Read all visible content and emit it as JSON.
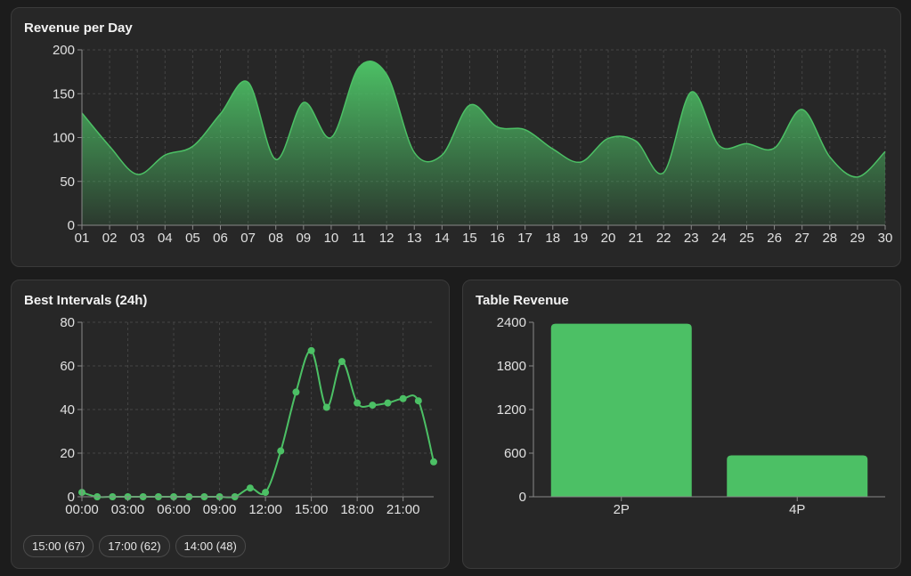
{
  "cards": {
    "revenue_title": "Revenue per Day",
    "intervals_title": "Best Intervals (24h)",
    "table_title": "Table Revenue"
  },
  "best_interval_pills": [
    "15:00 (67)",
    "17:00 (62)",
    "14:00 (48)"
  ],
  "colors": {
    "accent": "#4cc065",
    "background": "#1c1c1c",
    "card": "#272727"
  },
  "chart_data": [
    {
      "type": "area",
      "title": "Revenue per Day",
      "categories": [
        "01",
        "02",
        "03",
        "04",
        "05",
        "06",
        "07",
        "08",
        "09",
        "10",
        "11",
        "12",
        "13",
        "14",
        "15",
        "16",
        "17",
        "18",
        "19",
        "20",
        "21",
        "22",
        "23",
        "24",
        "25",
        "26",
        "27",
        "28",
        "29",
        "30"
      ],
      "series": [
        {
          "values": [
            128,
            90,
            58,
            80,
            90,
            127,
            163,
            75,
            140,
            100,
            180,
            172,
            83,
            80,
            137,
            112,
            109,
            87,
            72,
            99,
            96,
            60,
            152,
            91,
            93,
            88,
            132,
            78,
            55,
            84
          ]
        }
      ],
      "ylim": [
        0,
        200
      ],
      "yticks": [
        0,
        50,
        100,
        150,
        200
      ],
      "grid": true
    },
    {
      "type": "line",
      "title": "Best Intervals (24h)",
      "x": [
        "00:00",
        "01:00",
        "02:00",
        "03:00",
        "04:00",
        "05:00",
        "06:00",
        "07:00",
        "08:00",
        "09:00",
        "10:00",
        "11:00",
        "12:00",
        "13:00",
        "14:00",
        "15:00",
        "16:00",
        "17:00",
        "18:00",
        "19:00",
        "20:00",
        "21:00",
        "22:00",
        "23:00"
      ],
      "xtick_labels": [
        "00:00",
        "03:00",
        "06:00",
        "09:00",
        "12:00",
        "15:00",
        "18:00",
        "21:00"
      ],
      "series": [
        {
          "values": [
            2,
            0,
            0,
            0,
            0,
            0,
            0,
            0,
            0,
            0,
            0,
            4,
            2,
            21,
            48,
            67,
            41,
            62,
            43,
            42,
            43,
            45,
            44,
            16
          ]
        }
      ],
      "ylim": [
        0,
        80
      ],
      "yticks": [
        0,
        20,
        40,
        60,
        80
      ],
      "grid": true
    },
    {
      "type": "bar",
      "title": "Table Revenue",
      "categories": [
        "2P",
        "4P"
      ],
      "values": [
        2380,
        570
      ],
      "ylim": [
        0,
        2400
      ],
      "yticks": [
        0,
        600,
        1200,
        1800,
        2400
      ],
      "grid": false
    }
  ]
}
